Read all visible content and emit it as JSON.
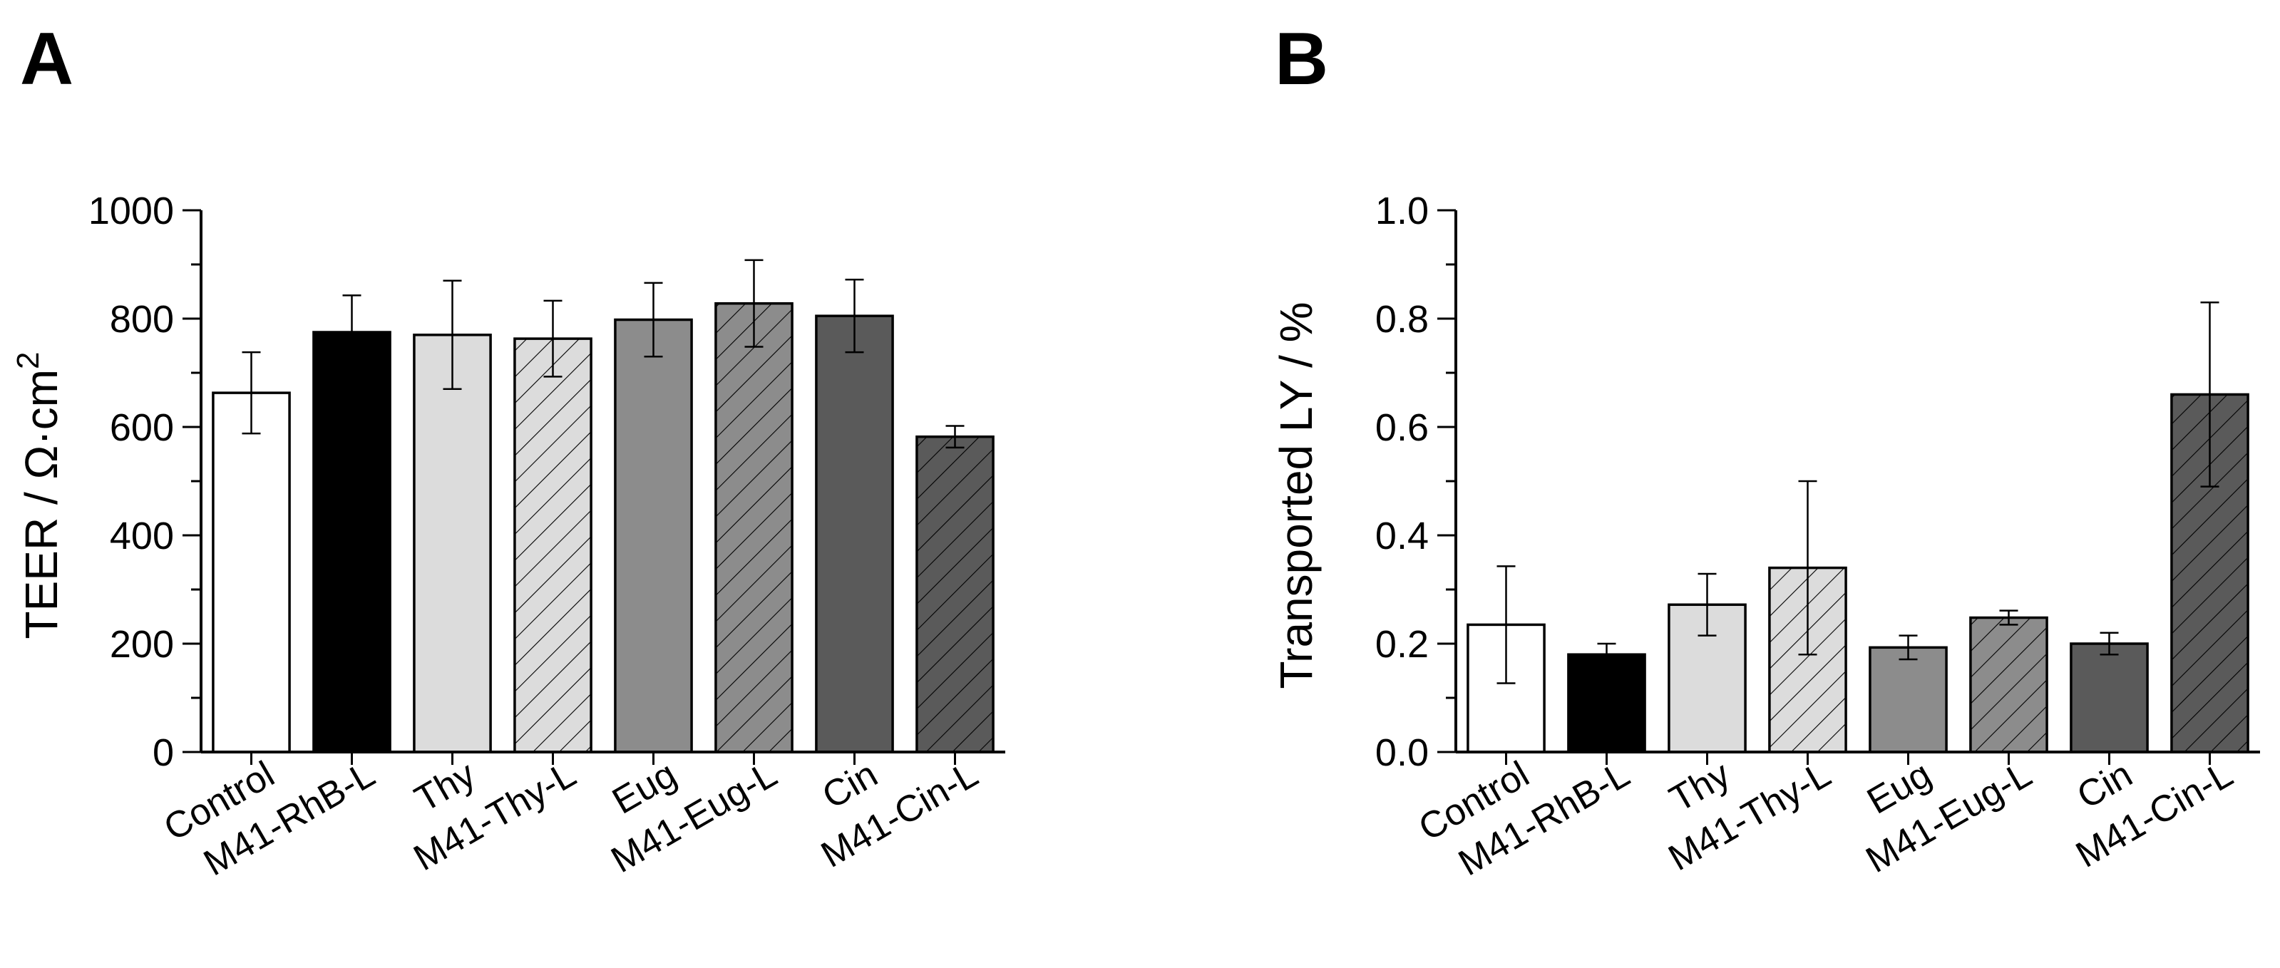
{
  "chart_data": [
    {
      "type": "bar",
      "panel_label": "A",
      "title": "",
      "xlabel": "",
      "ylabel": "TEER / Ω·cm",
      "ylabel_superscript": "2",
      "ylim": [
        0,
        1000
      ],
      "yticks": [
        0,
        200,
        400,
        600,
        800,
        1000
      ],
      "ytick_labels": [
        "0",
        "200",
        "400",
        "600",
        "800",
        "1000"
      ],
      "categories": [
        "Control",
        "M41-RhB-L",
        "Thy",
        "M41-Thy-L",
        "Eug",
        "M41-Eug-L",
        "Cin",
        "M41-Cin-L"
      ],
      "values": [
        663,
        775,
        770,
        763,
        798,
        828,
        805,
        582
      ],
      "errors": [
        75,
        68,
        100,
        70,
        68,
        80,
        67,
        20
      ],
      "colors": [
        "#ffffff",
        "#000000",
        "#dcdcdc",
        "#dcdcdc",
        "#8c8c8c",
        "#8c8c8c",
        "#5a5a5a",
        "#5a5a5a"
      ],
      "hatched": [
        false,
        false,
        false,
        true,
        false,
        true,
        false,
        true
      ]
    },
    {
      "type": "bar",
      "panel_label": "B",
      "title": "",
      "xlabel": "",
      "ylabel": "Transported LY / %",
      "ylabel_superscript": "",
      "ylim": [
        0,
        1.0
      ],
      "yticks": [
        0,
        0.2,
        0.4,
        0.6,
        0.8,
        1.0
      ],
      "ytick_labels": [
        "0.0",
        "0.2",
        "0.4",
        "0.6",
        "0.8",
        "1.0"
      ],
      "categories": [
        "Control",
        "M41-RhB-L",
        "Thy",
        "M41-Thy-L",
        "Eug",
        "M41-Eug-L",
        "Cin",
        "M41-Cin-L"
      ],
      "values": [
        0.235,
        0.18,
        0.272,
        0.34,
        0.193,
        0.248,
        0.2,
        0.66
      ],
      "errors": [
        0.108,
        0.02,
        0.057,
        0.16,
        0.022,
        0.013,
        0.02,
        0.17
      ],
      "colors": [
        "#ffffff",
        "#000000",
        "#dcdcdc",
        "#dcdcdc",
        "#8c8c8c",
        "#8c8c8c",
        "#5a5a5a",
        "#5a5a5a"
      ],
      "hatched": [
        false,
        false,
        false,
        true,
        false,
        true,
        false,
        true
      ]
    }
  ]
}
